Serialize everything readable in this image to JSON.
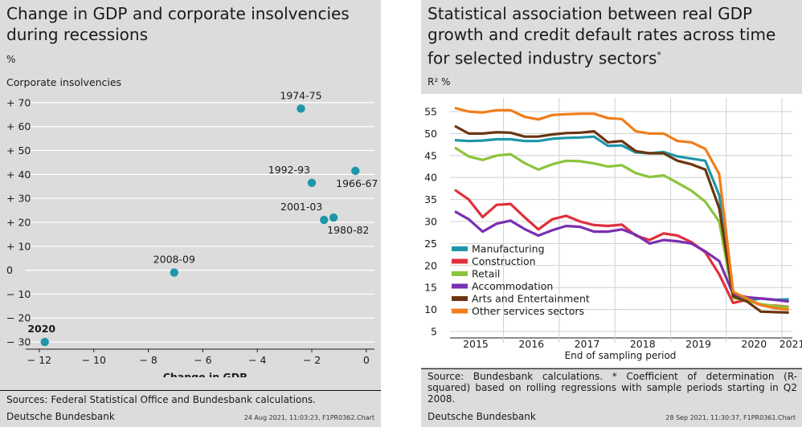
{
  "left": {
    "title_line1": "Change in GDP and corporate insolvencies",
    "title_line2": "during recessions",
    "unit": "%",
    "source": "Sources: Federal Statistical Office and Bundesbank calculations.",
    "footer": "Deutsche Bundesbank",
    "stamp": "24 Aug 2021, 11:03:23, F1PR0362.Chart"
  },
  "right": {
    "title_line1": "Statistical association between real GDP",
    "title_line2": "growth and credit default rates across time",
    "title_line3": "for selected industry sectors",
    "title_sup": "*",
    "unit": "R² %",
    "source_line1": "Source: Bundesbank calculations. * Coefficient of determination (R-",
    "source_line2": "squared) based on rolling regressions with sample periods starting in Q2",
    "source_line3": "2008.",
    "footer": "Deutsche Bundesbank",
    "stamp": "28 Sep 2021, 11:30:37, F1PR0361.Chart"
  },
  "colors": {
    "panel_bg": "#dcdcdc",
    "scatter_point": "#1e96a8",
    "Manufacturing": "#1e96a8",
    "Construction": "#e0303c",
    "Retail": "#8cc43c",
    "Accommodation": "#7a2fb0",
    "Arts and Entertainment": "#6b3510",
    "Other services sectors": "#f07d1a"
  },
  "chart_data": [
    {
      "type": "scatter",
      "xlabel": "Change in GDP",
      "ylabel": "Corporate insolvencies",
      "xlim": [
        -12.5,
        0.3
      ],
      "ylim": [
        -33,
        75
      ],
      "x_ticks": [
        "− 12",
        "− 10",
        "− 8",
        "− 6",
        "− 4",
        "− 2",
        "0"
      ],
      "x_tick_values": [
        -12,
        -10,
        -8,
        -6,
        -4,
        -2,
        0
      ],
      "y_ticks": [
        "+ 70",
        "+ 60",
        "+ 50",
        "+ 40",
        "+ 30",
        "+ 20",
        "+ 10",
        "0",
        "− 10",
        "− 20",
        "− 30"
      ],
      "y_tick_values": [
        70,
        60,
        50,
        40,
        30,
        20,
        10,
        0,
        -10,
        -20,
        -30
      ],
      "grid": true,
      "points": [
        {
          "label": "1974-75",
          "x": -2.4,
          "y": 67.5,
          "pos": "above"
        },
        {
          "label": "1992-93",
          "x": -2.0,
          "y": 36.5,
          "pos": "upper-left"
        },
        {
          "label": "1966-67",
          "x": -0.4,
          "y": 41.5,
          "pos": "below"
        },
        {
          "label": "2001-03",
          "x": -1.55,
          "y": 21.0,
          "pos": "upper-left"
        },
        {
          "label": "1980-82",
          "x": -1.2,
          "y": 22.0,
          "pos": "lower-right"
        },
        {
          "label": "2008-09",
          "x": -7.05,
          "y": -1.0,
          "pos": "above"
        },
        {
          "label": "2020",
          "x": -11.8,
          "y": -30.0,
          "pos": "above-bold"
        }
      ]
    },
    {
      "type": "line",
      "xlabel": "End of sampling period",
      "ylabel": "",
      "ylim": [
        5,
        57
      ],
      "y_ticks": [
        55,
        50,
        45,
        40,
        35,
        30,
        25,
        20,
        15,
        10,
        5
      ],
      "x_ticks": [
        "2015",
        "2016",
        "2017",
        "2018",
        "2019",
        "2020",
        "2021"
      ],
      "x_dates": [
        "2015-Q1",
        "2015-Q2",
        "2015-Q3",
        "2015-Q4",
        "2016-Q1",
        "2016-Q2",
        "2016-Q3",
        "2016-Q4",
        "2017-Q1",
        "2017-Q2",
        "2017-Q3",
        "2017-Q4",
        "2018-Q1",
        "2018-Q2",
        "2018-Q3",
        "2018-Q4",
        "2019-Q1",
        "2019-Q2",
        "2019-Q3",
        "2019-Q4",
        "2020-Q1",
        "2020-Q2",
        "2020-Q3",
        "2020-Q4",
        "2021-Q1"
      ],
      "grid": true,
      "legend_position": "lower-left",
      "series": [
        {
          "name": "Manufacturing",
          "values": [
            48.5,
            48.3,
            48.4,
            48.7,
            48.7,
            48.3,
            48.3,
            48.8,
            49.0,
            49.1,
            49.3,
            47.2,
            47.3,
            45.7,
            45.5,
            45.8,
            44.8,
            44.3,
            43.8,
            36.0,
            13.5,
            12.0,
            12.5,
            12.2,
            12.3
          ]
        },
        {
          "name": "Construction",
          "values": [
            37.2,
            35.0,
            31.0,
            33.8,
            34.0,
            31.0,
            28.2,
            30.5,
            31.3,
            30.0,
            29.2,
            29.0,
            29.3,
            26.8,
            25.8,
            27.3,
            26.8,
            25.3,
            23.0,
            18.0,
            11.5,
            12.2,
            11.0,
            10.9,
            10.6
          ]
        },
        {
          "name": "Retail",
          "values": [
            46.8,
            44.8,
            44.0,
            45.0,
            45.3,
            43.3,
            41.8,
            43.0,
            43.8,
            43.7,
            43.2,
            42.5,
            42.8,
            41.0,
            40.1,
            40.5,
            38.8,
            37.0,
            34.5,
            30.0,
            12.6,
            12.0,
            11.2,
            10.8,
            10.5
          ]
        },
        {
          "name": "Accommodation",
          "values": [
            32.3,
            30.5,
            27.7,
            29.5,
            30.2,
            28.3,
            26.8,
            28.0,
            29.0,
            28.8,
            27.7,
            27.7,
            28.2,
            27.0,
            25.0,
            25.8,
            25.5,
            25.0,
            23.2,
            21.0,
            13.5,
            12.8,
            12.5,
            12.2,
            11.8
          ]
        },
        {
          "name": "Arts and Entertainment",
          "values": [
            51.7,
            50.0,
            50.0,
            50.3,
            50.2,
            49.3,
            49.3,
            49.8,
            50.1,
            50.2,
            50.5,
            48.0,
            48.3,
            46.0,
            45.5,
            45.5,
            43.8,
            43.0,
            41.8,
            33.0,
            13.0,
            11.8,
            9.5,
            9.4,
            9.3
          ]
        },
        {
          "name": "Other services sectors",
          "values": [
            55.8,
            55.0,
            54.8,
            55.3,
            55.3,
            53.8,
            53.2,
            54.2,
            54.4,
            54.5,
            54.5,
            53.5,
            53.3,
            50.5,
            50.0,
            50.0,
            48.3,
            48.0,
            46.5,
            40.8,
            14.0,
            12.5,
            11.0,
            10.3,
            10.0
          ]
        }
      ]
    }
  ]
}
